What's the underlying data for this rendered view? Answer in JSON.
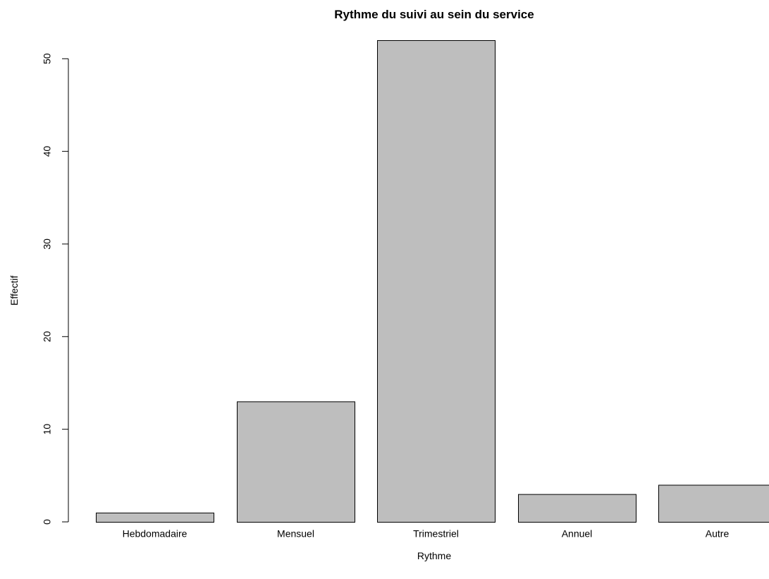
{
  "chart_data": {
    "type": "bar",
    "title": "Rythme du suivi au sein du service",
    "xlabel": "Rythme",
    "ylabel": "Effectif",
    "categories": [
      "Hebdomadaire",
      "Mensuel",
      "Trimestriel",
      "Annuel",
      "Autre"
    ],
    "values": [
      1,
      13,
      52,
      3,
      4
    ],
    "ylim": [
      0,
      52
    ],
    "yticks": [
      0,
      10,
      20,
      30,
      40,
      50
    ],
    "grid": false,
    "legend": "none",
    "bar_color": "#bebebe",
    "bar_border_color": "#000000"
  }
}
